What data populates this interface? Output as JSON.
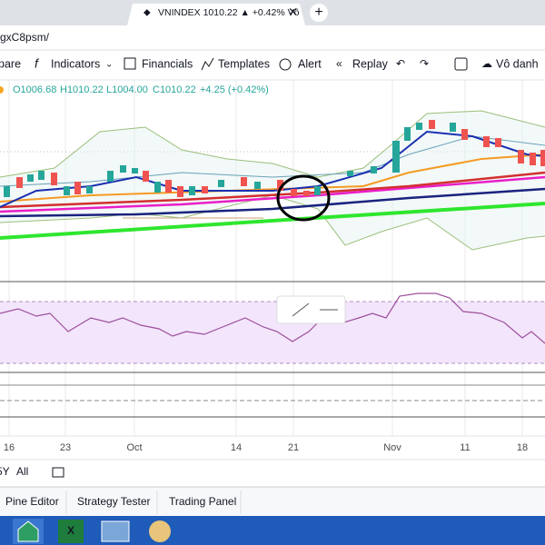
{
  "browser": {
    "tab_title": "VNINDEX 1010.22 ▲ +0.42% Vô",
    "url": "gxC8psm/"
  },
  "toolbar": {
    "items": [
      "pare",
      "Indicators",
      "Financials",
      "Templates",
      "Alert",
      "Replay",
      "Vô danh"
    ]
  },
  "legend": {
    "open": "O1006.68",
    "high": "H1010.22",
    "low": "L1004.00",
    "close": "C1010.22",
    "change": "+4.25 (+0.42%)"
  },
  "time_axis": {
    "labels": [
      "16",
      "23",
      "Oct",
      "14",
      "21",
      "Nov",
      "11",
      "18"
    ]
  },
  "range_bar": {
    "items": [
      "5Y",
      "All"
    ]
  },
  "bottom_tabs": [
    "Pine Editor",
    "Strategy Tester",
    "Trading Panel"
  ]
}
